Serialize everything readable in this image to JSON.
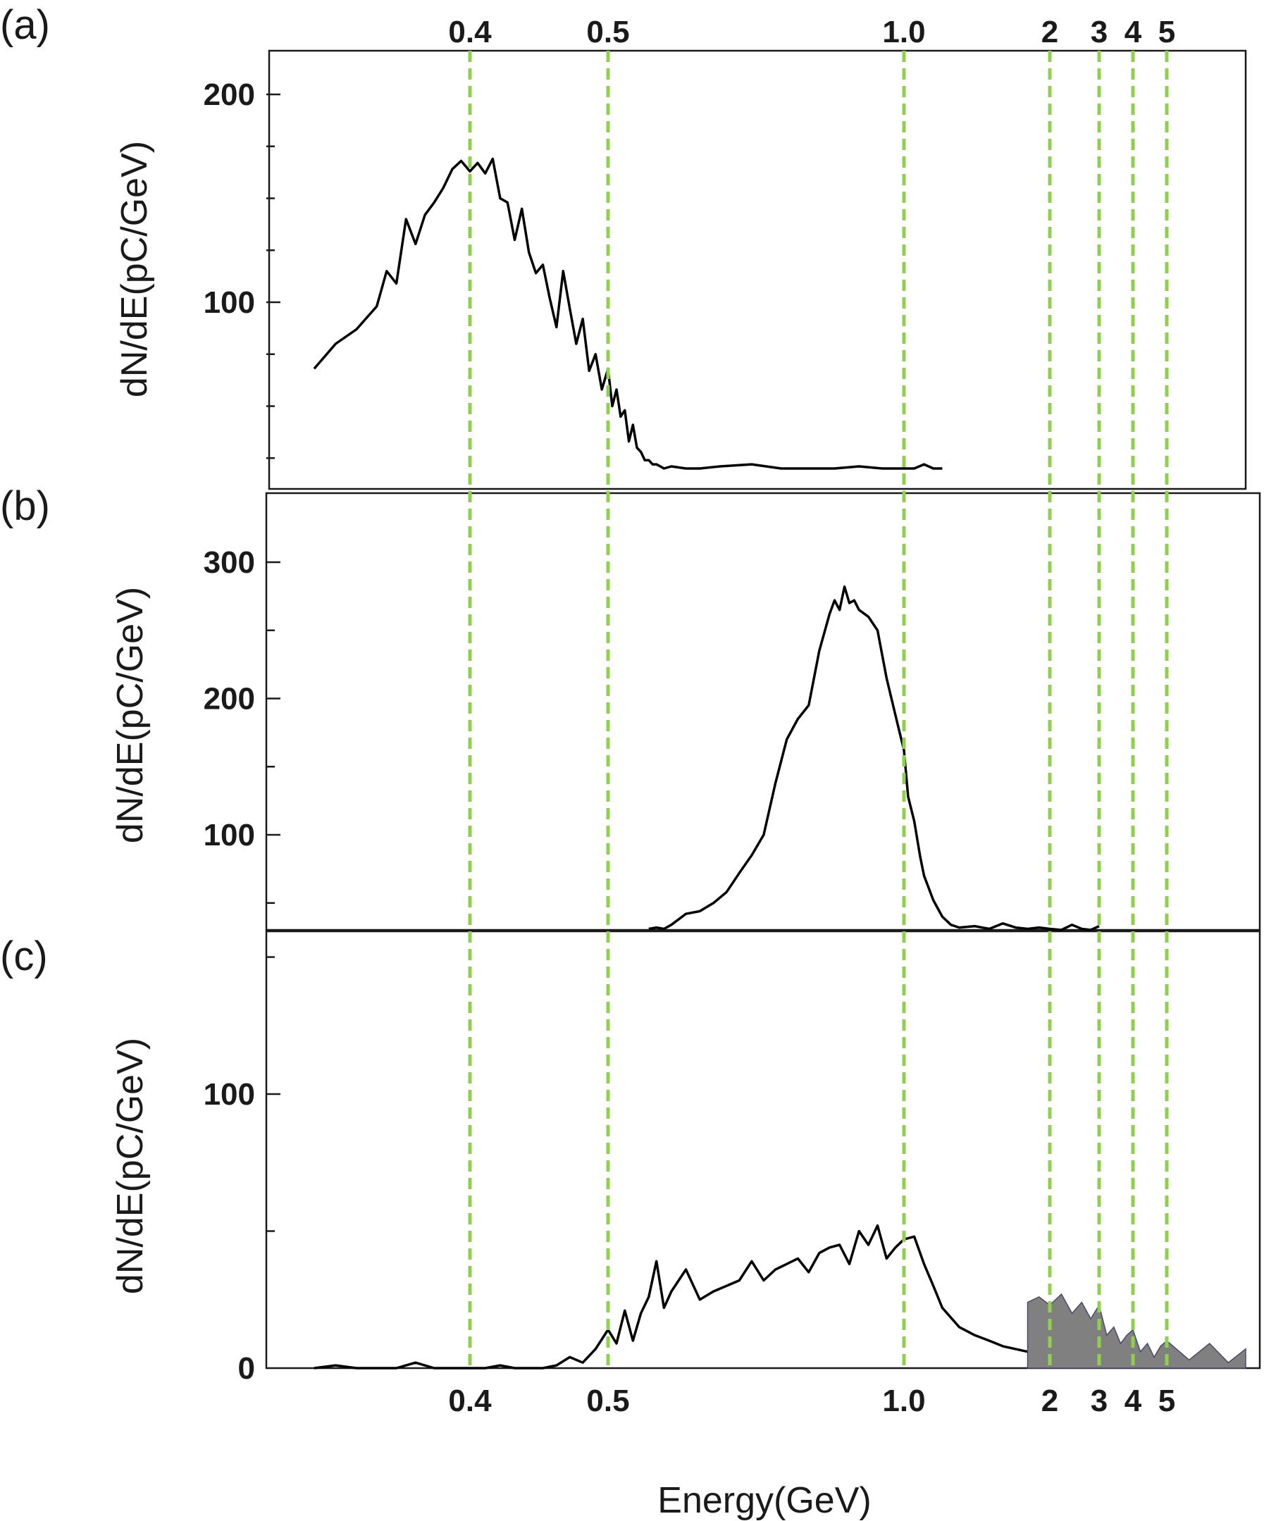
{
  "chart_data": [
    {
      "panel": "(a)",
      "type": "line",
      "xlabel": "",
      "ylabel": "dN/dE(pC/GeV)",
      "x_scale": "nonlinear (piecewise log)",
      "ylim": [
        20,
        220
      ],
      "y_ticks": [
        100,
        200
      ],
      "series": [
        {
          "x": [
            0.32,
            0.33,
            0.34,
            0.35,
            0.355,
            0.36,
            0.365,
            0.37,
            0.375,
            0.38,
            0.385,
            0.39,
            0.395,
            0.4,
            0.405,
            0.41,
            0.415,
            0.42,
            0.425,
            0.43,
            0.435,
            0.44,
            0.445,
            0.45,
            0.455,
            0.46,
            0.465,
            0.47,
            0.475,
            0.48,
            0.485,
            0.49,
            0.495,
            0.5,
            0.505,
            0.51,
            0.515,
            0.52,
            0.525,
            0.53,
            0.535,
            0.54,
            0.545,
            0.55,
            0.555,
            0.56,
            0.565,
            0.57,
            0.58,
            0.6,
            0.62,
            0.65,
            0.7,
            0.75,
            0.8,
            0.85,
            0.9,
            0.95,
            1.0,
            1.05,
            1.1,
            1.15,
            1.2
          ],
          "y": [
            68,
            80,
            87,
            98,
            115,
            109,
            140,
            128,
            142,
            148,
            155,
            164,
            168,
            163,
            167,
            162,
            169,
            150,
            148,
            130,
            145,
            124,
            114,
            118,
            102,
            88,
            115,
            97,
            80,
            92,
            67,
            75,
            58,
            68,
            50,
            58,
            45,
            48,
            33,
            41,
            30,
            28,
            24,
            24,
            22,
            22,
            21,
            20,
            21,
            20,
            20,
            21,
            22,
            20,
            20,
            20,
            21,
            20,
            20,
            20,
            22,
            20,
            20
          ]
        }
      ]
    },
    {
      "panel": "(b)",
      "type": "line",
      "xlabel": "",
      "ylabel": "dN/dE(pC/GeV)",
      "x_scale": "nonlinear (piecewise log)",
      "ylim": [
        30,
        350
      ],
      "y_ticks": [
        100,
        200,
        300
      ],
      "series": [
        {
          "x": [
            0.55,
            0.56,
            0.57,
            0.58,
            0.6,
            0.62,
            0.64,
            0.66,
            0.68,
            0.7,
            0.72,
            0.74,
            0.76,
            0.78,
            0.8,
            0.82,
            0.84,
            0.85,
            0.86,
            0.87,
            0.88,
            0.89,
            0.9,
            0.92,
            0.94,
            0.96,
            0.98,
            1.0,
            1.02,
            1.05,
            1.08,
            1.1,
            1.15,
            1.2,
            1.25,
            1.3,
            1.4,
            1.5,
            1.6,
            1.7,
            1.8,
            1.9,
            2.0,
            2.2,
            2.4,
            2.6,
            2.8,
            3.0
          ],
          "y": [
            31,
            32,
            31,
            34,
            42,
            44,
            50,
            58,
            72,
            85,
            100,
            138,
            170,
            185,
            195,
            235,
            262,
            272,
            265,
            282,
            270,
            272,
            265,
            260,
            250,
            215,
            188,
            162,
            128,
            110,
            84,
            70,
            52,
            40,
            34,
            32,
            33,
            31,
            35,
            32,
            31,
            32,
            31,
            30,
            34,
            31,
            30,
            33
          ]
        }
      ]
    },
    {
      "panel": "(c)",
      "type": "area",
      "xlabel": "Energy(GeV)",
      "ylabel": "dN/dE(pC/GeV)",
      "x_scale": "nonlinear (piecewise log)",
      "x_ticks": [
        "0.4",
        "0.5",
        "1.0",
        "2",
        "3",
        "4",
        "5"
      ],
      "ylim": [
        0,
        160
      ],
      "y_ticks": [
        0,
        100
      ],
      "series": [
        {
          "x": [
            0.32,
            0.33,
            0.34,
            0.35,
            0.36,
            0.37,
            0.38,
            0.39,
            0.4,
            0.41,
            0.42,
            0.43,
            0.44,
            0.45,
            0.46,
            0.47,
            0.48,
            0.49,
            0.5,
            0.51,
            0.52,
            0.53,
            0.54,
            0.55,
            0.56,
            0.57,
            0.58,
            0.6,
            0.62,
            0.64,
            0.66,
            0.68,
            0.7,
            0.72,
            0.74,
            0.76,
            0.78,
            0.8,
            0.82,
            0.84,
            0.86,
            0.88,
            0.9,
            0.92,
            0.94,
            0.96,
            0.98,
            1.0,
            1.05,
            1.1,
            1.15,
            1.2,
            1.3,
            1.4,
            1.5,
            1.6,
            1.8
          ],
          "y": [
            0,
            1,
            0,
            0,
            0,
            2,
            0,
            0,
            0,
            0,
            1,
            0,
            0,
            0,
            1,
            4,
            2,
            7,
            14,
            9,
            21,
            10,
            20,
            26,
            39,
            22,
            28,
            36,
            25,
            28,
            30,
            32,
            39,
            32,
            36,
            38,
            40,
            35,
            42,
            44,
            45,
            38,
            50,
            45,
            52,
            40,
            44,
            47,
            48,
            38,
            30,
            22,
            15,
            12,
            10,
            8,
            6
          ]
        },
        {
          "name": "",
          "fill": "#808080",
          "x": [
            1.8,
            1.9,
            2.0,
            2.2,
            2.4,
            2.6,
            2.8,
            3.0,
            3.2,
            3.4,
            3.6,
            3.8,
            4.0,
            4.2,
            4.4,
            4.6,
            4.8,
            5.0,
            5.5,
            6.0,
            6.5,
            7.0
          ],
          "y": [
            24,
            26,
            23,
            27,
            20,
            24,
            18,
            23,
            12,
            15,
            9,
            12,
            14,
            6,
            9,
            4,
            8,
            10,
            3,
            9,
            2,
            7
          ]
        }
      ]
    }
  ],
  "axis": {
    "top_ticks": [
      "0.4",
      "0.5",
      "1.0",
      "2",
      "3",
      "4",
      "5"
    ],
    "marker_energies": [
      0.4,
      0.5,
      1.0,
      2,
      3,
      4,
      5
    ],
    "marker_color": "#8fd14f"
  }
}
